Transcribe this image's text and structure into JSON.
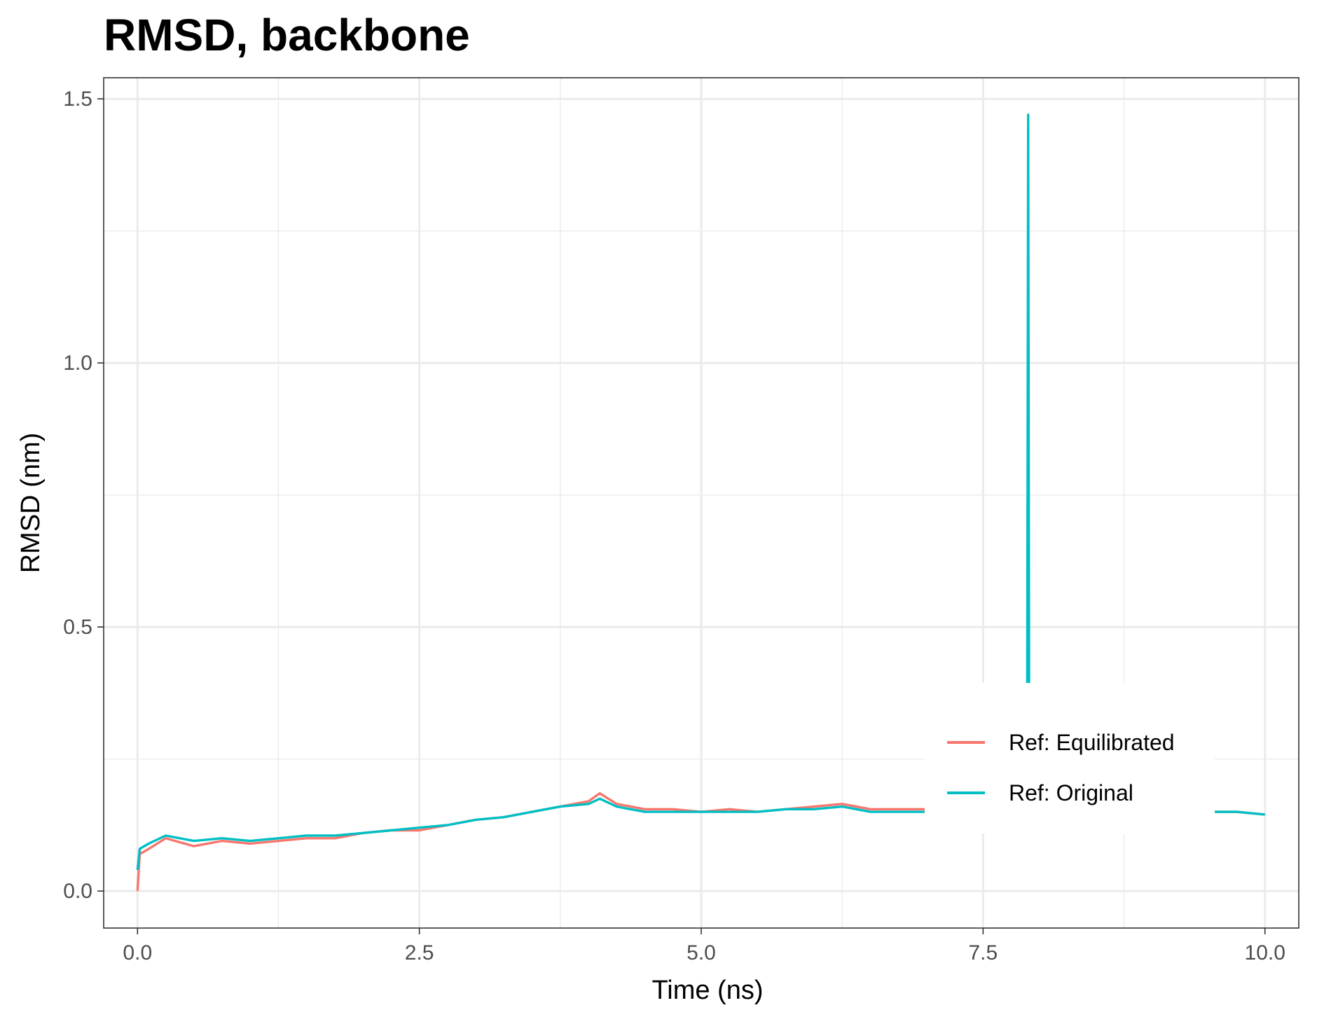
{
  "chart_data": {
    "type": "line",
    "title": "RMSD, backbone",
    "xlabel": "Time (ns)",
    "ylabel": "RMSD (nm)",
    "xlim": [
      -0.3,
      10.3
    ],
    "ylim": [
      -0.07,
      1.54
    ],
    "x_ticks": [
      0.0,
      2.5,
      5.0,
      7.5,
      10.0
    ],
    "x_tick_labels": [
      "0.0",
      "2.5",
      "5.0",
      "7.5",
      "10.0"
    ],
    "y_ticks": [
      0.0,
      0.5,
      1.0,
      1.5
    ],
    "y_tick_labels": [
      "0.0",
      "0.5",
      "1.0",
      "1.5"
    ],
    "grid": true,
    "legend_position": "inside-bottom-right",
    "series": [
      {
        "name": "Ref: Equilibrated",
        "color": "#F8766D",
        "x": [
          0.0,
          0.02,
          0.1,
          0.25,
          0.5,
          0.75,
          1.0,
          1.25,
          1.5,
          1.75,
          2.0,
          2.25,
          2.5,
          2.75,
          3.0,
          3.25,
          3.5,
          3.75,
          4.0,
          4.1,
          4.25,
          4.5,
          4.75,
          5.0,
          5.25,
          5.5,
          5.75,
          6.0,
          6.25,
          6.5,
          6.75,
          7.0,
          7.25,
          7.5,
          7.75,
          7.9,
          8.1,
          8.5,
          8.75,
          9.0,
          9.25,
          9.5,
          9.75,
          10.0
        ],
        "y": [
          0.0,
          0.07,
          0.08,
          0.1,
          0.085,
          0.095,
          0.09,
          0.095,
          0.1,
          0.1,
          0.11,
          0.115,
          0.115,
          0.125,
          0.135,
          0.14,
          0.15,
          0.16,
          0.17,
          0.185,
          0.165,
          0.155,
          0.155,
          0.15,
          0.155,
          0.15,
          0.155,
          0.16,
          0.165,
          0.155,
          0.155,
          0.155,
          0.15,
          0.15,
          0.15,
          0.15,
          0.15,
          0.15,
          0.15,
          0.15,
          0.15,
          0.15,
          0.15,
          0.145
        ]
      },
      {
        "name": "Ref: Original",
        "color": "#00BFC4",
        "x": [
          0.0,
          0.02,
          0.1,
          0.25,
          0.5,
          0.75,
          1.0,
          1.25,
          1.5,
          1.75,
          2.0,
          2.25,
          2.5,
          2.75,
          3.0,
          3.25,
          3.5,
          3.75,
          4.0,
          4.1,
          4.25,
          4.5,
          4.75,
          5.0,
          5.25,
          5.5,
          5.75,
          6.0,
          6.25,
          6.5,
          6.75,
          7.0,
          7.25,
          7.5,
          7.75,
          7.89,
          7.9,
          7.91,
          8.1,
          8.5,
          8.75,
          9.0,
          9.25,
          9.5,
          9.75,
          10.0
        ],
        "y": [
          0.04,
          0.08,
          0.09,
          0.105,
          0.095,
          0.1,
          0.095,
          0.1,
          0.105,
          0.105,
          0.11,
          0.115,
          0.12,
          0.125,
          0.135,
          0.14,
          0.15,
          0.16,
          0.165,
          0.175,
          0.16,
          0.15,
          0.15,
          0.15,
          0.15,
          0.15,
          0.155,
          0.155,
          0.16,
          0.15,
          0.15,
          0.15,
          0.15,
          0.15,
          0.15,
          0.15,
          1.47,
          0.15,
          0.15,
          0.15,
          0.15,
          0.15,
          0.15,
          0.15,
          0.15,
          0.145
        ]
      }
    ]
  }
}
